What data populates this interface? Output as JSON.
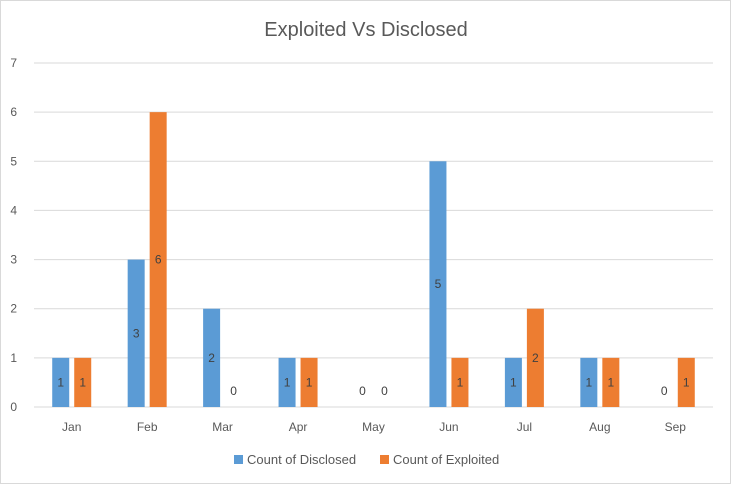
{
  "chart_data": {
    "type": "bar",
    "title": "Exploited Vs Disclosed",
    "xlabel": "",
    "ylabel": "",
    "categories": [
      "Jan",
      "Feb",
      "Mar",
      "Apr",
      "May",
      "Jun",
      "Jul",
      "Aug",
      "Sep"
    ],
    "series": [
      {
        "name": "Count of Disclosed",
        "color": "#5b9bd5",
        "values": [
          1,
          3,
          2,
          1,
          0,
          5,
          1,
          1,
          0
        ]
      },
      {
        "name": "Count of Exploited",
        "color": "#ed7d31",
        "values": [
          1,
          6,
          0,
          1,
          0,
          1,
          2,
          1,
          1
        ]
      }
    ],
    "ylim": [
      0,
      7
    ],
    "yticks": [
      "0",
      "1",
      "2",
      "3",
      "4",
      "5",
      "6",
      "7"
    ],
    "grid": true,
    "data_labels": true,
    "legend_position": "bottom"
  }
}
